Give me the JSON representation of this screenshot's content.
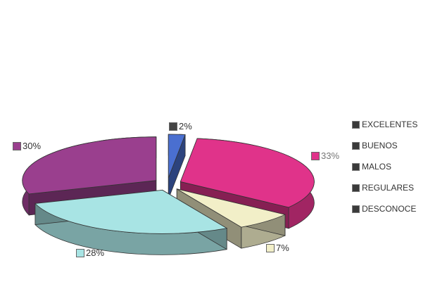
{
  "chart_data": {
    "type": "pie",
    "categories": [
      "EXCELENTES",
      "BUENOS",
      "MALOS",
      "REGULARES",
      "DESCONOCE"
    ],
    "slices": [
      {
        "label": "2%",
        "value": 2,
        "color": "#4a6fd0"
      },
      {
        "label": "33%",
        "value": 33,
        "color": "#e0338a"
      },
      {
        "label": "7%",
        "value": 7,
        "color": "#f2efc8"
      },
      {
        "label": "28%",
        "value": 28,
        "color": "#a8e4e4"
      },
      {
        "label": "30%",
        "value": 30,
        "color": "#9a3f8e"
      }
    ],
    "legend": {
      "entries": [
        "EXCELENTES",
        "BUENOS",
        "MALOS",
        "REGULARES",
        "DESCONOCE"
      ],
      "placement": "right"
    }
  }
}
